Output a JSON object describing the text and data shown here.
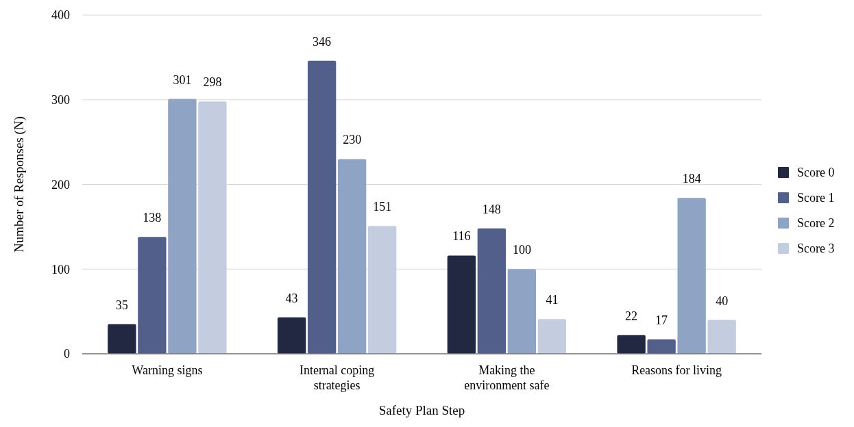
{
  "chart_data": {
    "type": "bar",
    "xlabel": "Safety Plan Step",
    "ylabel": "Number of Responses (N)",
    "categories": [
      "Warning signs",
      "Internal coping strategies",
      "Making the environment safe",
      "Reasons for living"
    ],
    "series": [
      {
        "name": "Score 0",
        "color": "#232842",
        "values": [
          35,
          43,
          116,
          22
        ]
      },
      {
        "name": "Score 1",
        "color": "#525f8a",
        "values": [
          138,
          346,
          148,
          17
        ]
      },
      {
        "name": "Score 2",
        "color": "#8fa3c4",
        "values": [
          301,
          230,
          100,
          184
        ]
      },
      {
        "name": "Score 3",
        "color": "#c4cde0",
        "values": [
          298,
          151,
          41,
          40
        ]
      }
    ],
    "ylim": [
      0,
      400
    ],
    "yticks": [
      0,
      100,
      200,
      300,
      400
    ],
    "grid": "y",
    "legend": "right",
    "data_labels": true
  }
}
